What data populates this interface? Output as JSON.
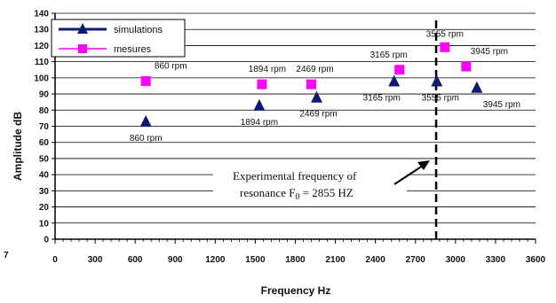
{
  "chart_data": {
    "type": "scatter",
    "xlabel": "Frequency Hz",
    "ylabel": "Amplitude dB",
    "xlim": [
      0,
      3600
    ],
    "ylim": [
      0,
      140
    ],
    "x_ticks": [
      "0",
      "300",
      "600",
      "900",
      "1200",
      "1500",
      "1800",
      "2100",
      "2400",
      "2700",
      "3000",
      "3300",
      "3600"
    ],
    "y_ticks": [
      "0",
      "10",
      "20",
      "30",
      "40",
      "50",
      "60",
      "70",
      "80",
      "90",
      "100",
      "110",
      "120",
      "130",
      "140"
    ],
    "grid": "horizontal",
    "legend_position": "top-left",
    "series": [
      {
        "name": "simulations",
        "marker": "triangle",
        "color": "#0b1d72",
        "points": [
          {
            "x": 680,
            "y": 73,
            "label": "860 rpm"
          },
          {
            "x": 1530,
            "y": 83,
            "label": "1894 rpm"
          },
          {
            "x": 1960,
            "y": 88,
            "label": "2469 rpm"
          },
          {
            "x": 2540,
            "y": 98,
            "label": "3165 rpm"
          },
          {
            "x": 2860,
            "y": 98,
            "label": "3555 rpm"
          },
          {
            "x": 3160,
            "y": 94,
            "label": "3945 rpm"
          }
        ]
      },
      {
        "name": "mesures",
        "marker": "square",
        "color": "#ff00ff",
        "points": [
          {
            "x": 680,
            "y": 98,
            "label": "860 rpm"
          },
          {
            "x": 1550,
            "y": 96,
            "label": "1894 rpm"
          },
          {
            "x": 1920,
            "y": 96,
            "label": "2469 rpm"
          },
          {
            "x": 2580,
            "y": 105,
            "label": "3165 rpm"
          },
          {
            "x": 2920,
            "y": 119,
            "label": "3555 rpm"
          },
          {
            "x": 3080,
            "y": 107,
            "label": "3945 rpm"
          }
        ]
      }
    ],
    "resonance_line_x": 2855,
    "annotation": {
      "line1": "Experimental  frequency of",
      "line2_prefix": "resonance  F",
      "line2_sub": "0",
      "line2_suffix": " = 2855 HZ"
    },
    "corner_mark": "7"
  }
}
